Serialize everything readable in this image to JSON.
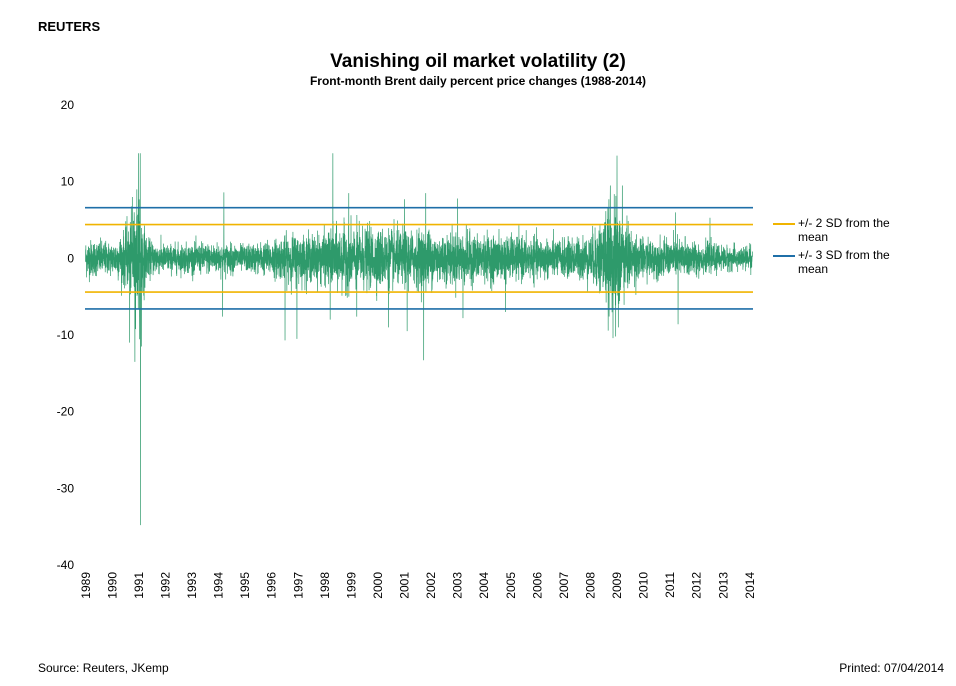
{
  "publisher": "REUTERS",
  "source": "Source: Reuters, JKemp",
  "printed": "Printed: 07/04/2014",
  "colors": {
    "series": "#2e9a6b",
    "sd2": "#f0b400",
    "sd3": "#1f6fa8",
    "axis_text": "#000000"
  },
  "chart_data": {
    "type": "line",
    "title": "Vanishing oil market volatility (2)",
    "subtitle": "Front-month Brent daily percent price changes (1988-2014)",
    "xlabel": "",
    "ylabel": "",
    "ylim": [
      -40,
      20
    ],
    "xlim": [
      1988.97,
      2014.12
    ],
    "y_ticks": [
      "20",
      "10",
      "0",
      "-10",
      "-20",
      "-30",
      "-40"
    ],
    "y_tick_values": [
      20,
      10,
      0,
      -10,
      -20,
      -30,
      -40
    ],
    "x_ticks": [
      "1989",
      "1990",
      "1991",
      "1992",
      "1993",
      "1994",
      "1995",
      "1996",
      "1997",
      "1998",
      "1999",
      "2000",
      "2001",
      "2002",
      "2003",
      "2004",
      "2005",
      "2006",
      "2007",
      "2008",
      "2009",
      "2010",
      "2011",
      "2012",
      "2013",
      "2014"
    ],
    "grid": false,
    "legend_position": "right",
    "series": [
      {
        "name": "",
        "kind": "daily_percent_change",
        "note_envelope": "approximate daily volatility envelope (typical range in %)",
        "envelope": {
          "years": [
            1989.0,
            1990.0,
            1990.6,
            1990.9,
            1991.05,
            1991.3,
            1992.0,
            1993.0,
            1994.0,
            1995.0,
            1996.0,
            1996.8,
            1997.5,
            1998.0,
            1998.6,
            1999.5,
            2000.5,
            2001.0,
            2001.8,
            2002.5,
            2003.2,
            2004.0,
            2005.0,
            2006.0,
            2007.0,
            2008.0,
            2008.7,
            2008.9,
            2009.2,
            2009.5,
            2010.0,
            2011.0,
            2011.5,
            2012.0,
            2013.0,
            2014.1
          ],
          "typical": [
            2.2,
            1.8,
            3.5,
            6.0,
            6.0,
            2.2,
            1.6,
            1.7,
            1.8,
            1.5,
            2.0,
            2.8,
            2.6,
            2.9,
            3.6,
            3.4,
            3.3,
            3.1,
            3.3,
            2.8,
            3.0,
            2.6,
            2.5,
            2.3,
            2.1,
            2.6,
            5.8,
            6.2,
            5.0,
            3.2,
            2.2,
            2.0,
            2.4,
            1.8,
            1.4,
            1.3
          ]
        },
        "extremes": [
          {
            "x": 1990.55,
            "y": 5.5
          },
          {
            "x": 1990.65,
            "y": -11.0
          },
          {
            "x": 1990.75,
            "y": 8.0
          },
          {
            "x": 1990.85,
            "y": -13.5
          },
          {
            "x": 1990.92,
            "y": 9.0
          },
          {
            "x": 1991.05,
            "y": 13.7
          },
          {
            "x": 1991.06,
            "y": -34.8
          },
          {
            "x": 1991.1,
            "y": -11.5
          },
          {
            "x": 1990.98,
            "y": 13.7
          },
          {
            "x": 1994.2,
            "y": 8.6
          },
          {
            "x": 1994.15,
            "y": -7.6
          },
          {
            "x": 1996.5,
            "y": -10.7
          },
          {
            "x": 1996.95,
            "y": -10.5
          },
          {
            "x": 1998.3,
            "y": 13.7
          },
          {
            "x": 1998.2,
            "y": -8.0
          },
          {
            "x": 1998.9,
            "y": 8.5
          },
          {
            "x": 1999.2,
            "y": -7.6
          },
          {
            "x": 2000.4,
            "y": -9.0
          },
          {
            "x": 2001.0,
            "y": 7.7
          },
          {
            "x": 2001.1,
            "y": -9.5
          },
          {
            "x": 2001.72,
            "y": -13.3
          },
          {
            "x": 2001.8,
            "y": 8.5
          },
          {
            "x": 2003.0,
            "y": 7.8
          },
          {
            "x": 2003.2,
            "y": -7.8
          },
          {
            "x": 2004.8,
            "y": -7.0
          },
          {
            "x": 2008.75,
            "y": 9.5
          },
          {
            "x": 2008.85,
            "y": -10.4
          },
          {
            "x": 2008.95,
            "y": -10.2
          },
          {
            "x": 2009.0,
            "y": 13.4
          },
          {
            "x": 2009.05,
            "y": -9.0
          },
          {
            "x": 2009.2,
            "y": 9.5
          },
          {
            "x": 2011.3,
            "y": -8.6
          },
          {
            "x": 2011.2,
            "y": 6.0
          },
          {
            "x": 2012.5,
            "y": 5.3
          },
          {
            "x": 2014.0,
            "y": 2.0
          }
        ],
        "n_points": 6500,
        "seed": 12345
      },
      {
        "name": "+/- 2 SD from the mean",
        "values": [
          4.4,
          -4.4
        ],
        "type": "hline"
      },
      {
        "name": "+/- 3 SD from the mean",
        "values": [
          6.6,
          -6.6
        ],
        "type": "hline"
      }
    ]
  },
  "legend": [
    {
      "label": "+/- 2 SD from the mean",
      "color_key": "sd2"
    },
    {
      "label": "+/- 3 SD from the mean",
      "color_key": "sd3"
    }
  ]
}
